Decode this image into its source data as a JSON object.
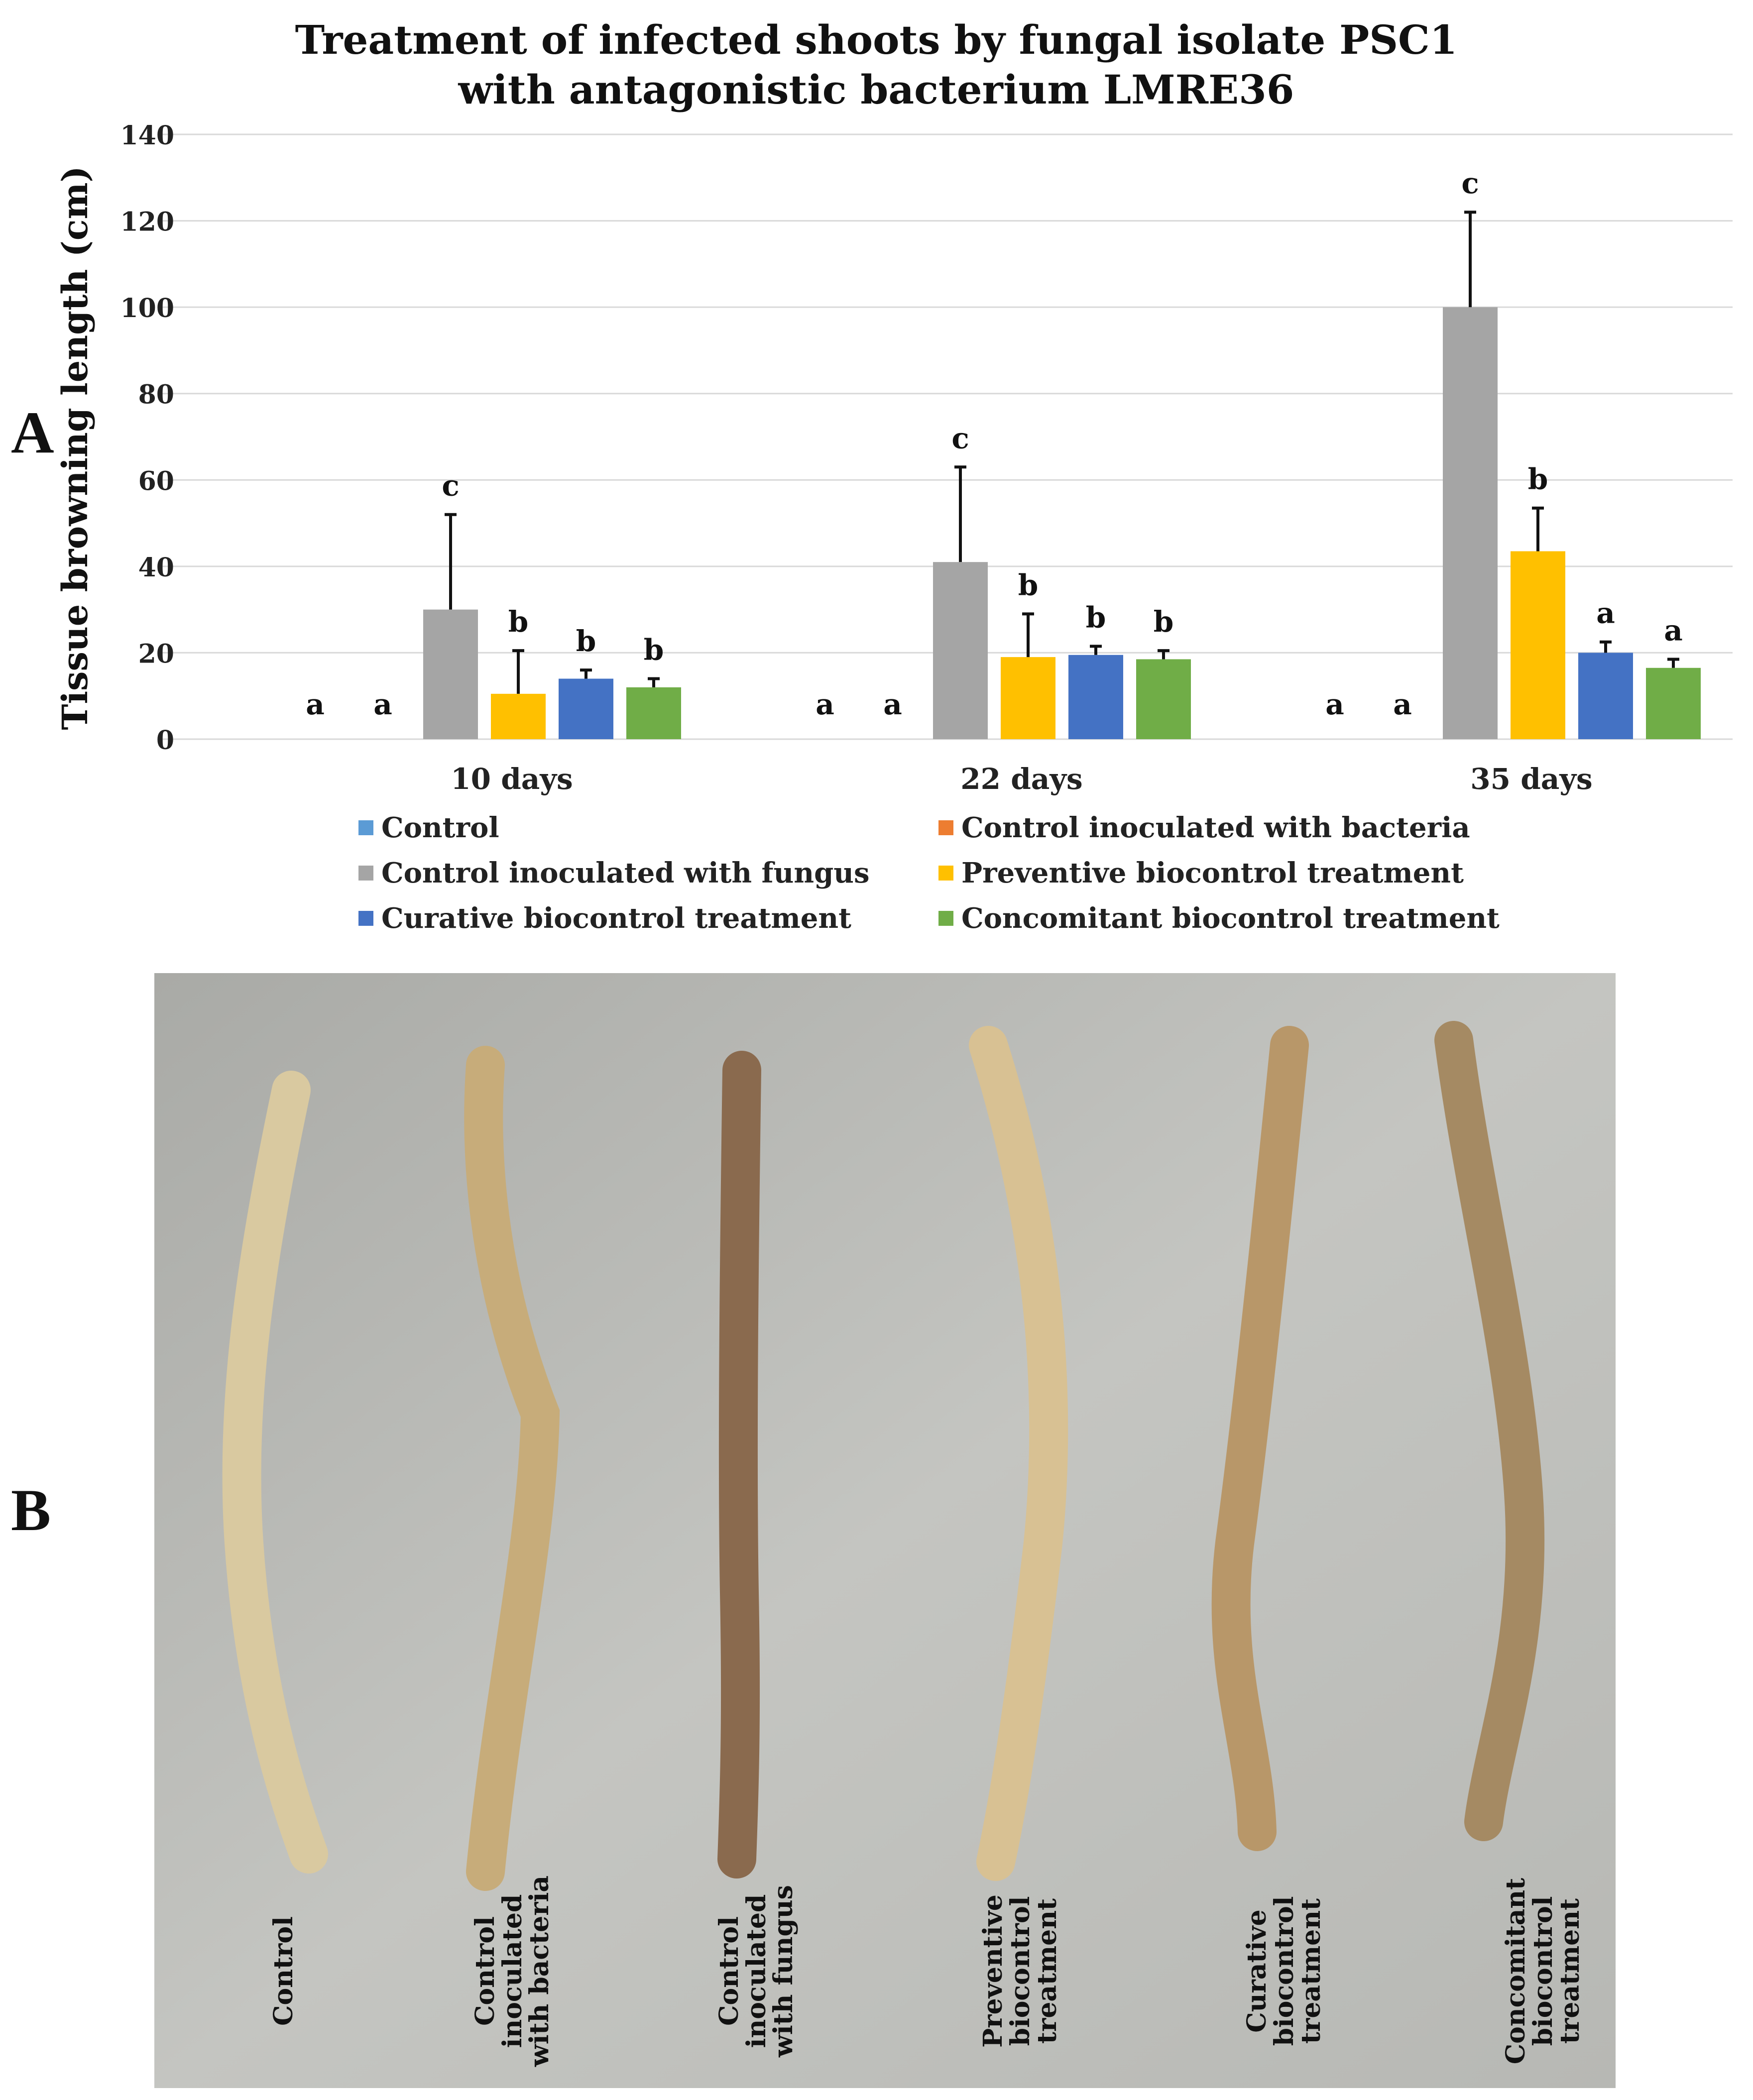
{
  "panels": {
    "a": "A",
    "b": "B"
  },
  "chart_data": {
    "type": "bar",
    "title": "Treatment of infected shoots by fungal isolate PSC1",
    "subtitle": "with antagonistic bacterium LMRE36",
    "xlabel": "",
    "ylabel": "Tissue browning length (cm)",
    "ylim": [
      0,
      140
    ],
    "yticks": [
      0,
      20,
      40,
      60,
      80,
      100,
      120,
      140
    ],
    "grid": true,
    "legend_position": "bottom",
    "categories": [
      "10 days",
      "22 days",
      "35 days"
    ],
    "series": [
      {
        "name": "Control",
        "color": "#5b9bd5",
        "values": [
          0,
          0,
          0
        ],
        "errors": [
          0,
          0,
          0
        ],
        "letters": [
          "a",
          "a",
          "a"
        ]
      },
      {
        "name": "Control inoculated with bacteria",
        "color": "#ed7d31",
        "values": [
          0,
          0,
          0
        ],
        "errors": [
          0,
          0,
          0
        ],
        "letters": [
          "a",
          "a",
          "a"
        ]
      },
      {
        "name": "Control inoculated with fungus",
        "color": "#a5a5a5",
        "values": [
          30,
          41,
          100
        ],
        "errors": [
          22,
          22,
          22
        ],
        "letters": [
          "c",
          "c",
          "c"
        ]
      },
      {
        "name": "Preventive biocontrol treatment",
        "color": "#ffc000",
        "values": [
          10.5,
          19,
          43.5
        ],
        "errors": [
          10,
          10,
          10
        ],
        "letters": [
          "b",
          "b",
          "b"
        ]
      },
      {
        "name": "Curative biocontrol treatment",
        "color": "#4472c4",
        "values": [
          14,
          19.5,
          20
        ],
        "errors": [
          2,
          2,
          2.5
        ],
        "letters": [
          "b",
          "b",
          "a"
        ]
      },
      {
        "name": "Concomitant biocontrol treatment",
        "color": "#70ad47",
        "values": [
          12,
          18.5,
          16.5
        ],
        "errors": [
          2,
          2,
          2
        ],
        "letters": [
          "b",
          "b",
          "a"
        ]
      }
    ]
  },
  "photo": {
    "shoot_labels": [
      "Control",
      "Control inoculated with bacteria",
      "Control inoculated with fungus",
      "Preventive biocontrol treatment",
      "Curative biocontrol treatment",
      "Concomitant biocontrol treatment"
    ],
    "shoot_colors": [
      "#d9c9a0",
      "#c7ac7a",
      "#8a6a4e",
      "#d8c193",
      "#b89769",
      "#a58a63"
    ]
  }
}
